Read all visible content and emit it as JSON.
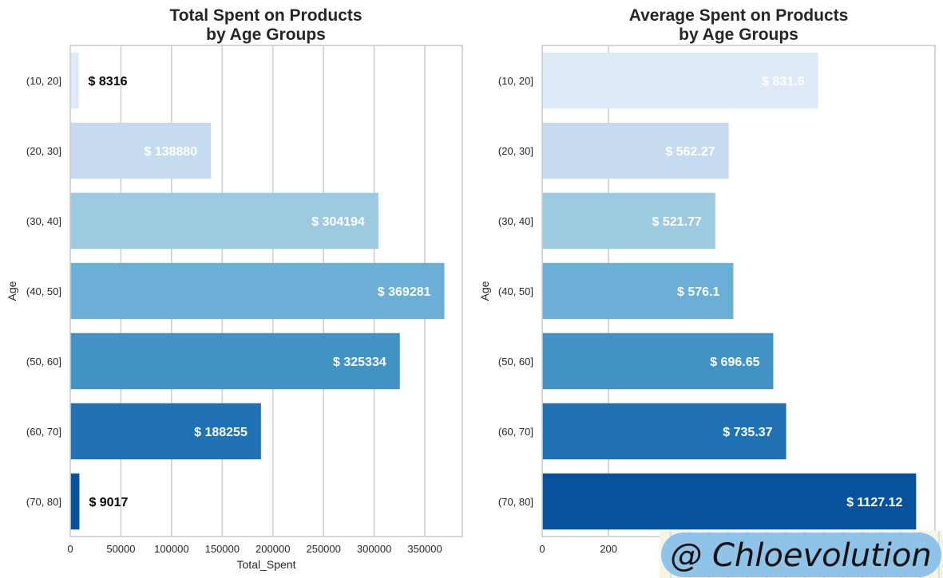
{
  "chart_data": [
    {
      "type": "bar",
      "orientation": "horizontal",
      "title": [
        "Total Spent on Products",
        "by Age Groups"
      ],
      "xlabel": "Total_Spent",
      "ylabel": "Age",
      "categories": [
        "(10, 20]",
        "(20, 30]",
        "(30, 40]",
        "(40, 50]",
        "(50, 60]",
        "(60, 70]",
        "(70, 80]"
      ],
      "values": [
        8316,
        138880,
        304194,
        369281,
        325334,
        188255,
        9017
      ],
      "data_labels": [
        "$ 8316",
        "$ 138880",
        "$ 304194",
        "$ 369281",
        "$ 325334",
        "$ 188255",
        "$ 9017"
      ],
      "xlim": [
        0,
        387000
      ],
      "xticks": [
        0,
        50000,
        100000,
        150000,
        200000,
        250000,
        300000,
        350000
      ],
      "xtick_labels": [
        "0",
        "50000",
        "100000",
        "150000",
        "200000",
        "250000",
        "300000",
        "350000"
      ],
      "grid": true,
      "colors": [
        "#deebf7",
        "#c6dbef",
        "#9ecae1",
        "#6baed6",
        "#4292c6",
        "#2171b5",
        "#08519c"
      ]
    },
    {
      "type": "bar",
      "orientation": "horizontal",
      "title": [
        "Average Spent on Products",
        "by Age Groups"
      ],
      "xlabel": "",
      "ylabel": "Age",
      "categories": [
        "(10, 20]",
        "(20, 30]",
        "(30, 40]",
        "(40, 50]",
        "(50, 60]",
        "(60, 70]",
        "(70, 80]"
      ],
      "values": [
        831.6,
        562.27,
        521.77,
        576.1,
        696.65,
        735.37,
        1127.12
      ],
      "data_labels": [
        "$ 831.6",
        "$ 562.27",
        "$ 521.77",
        "$ 576.1",
        "$ 696.65",
        "$ 735.37",
        "$ 1127.12"
      ],
      "xlim": [
        0,
        1184
      ],
      "xticks": [
        0,
        200
      ],
      "xtick_labels": [
        "0",
        "200"
      ],
      "grid": true,
      "colors": [
        "#deebf7",
        "#c6dbef",
        "#9ecae1",
        "#6baed6",
        "#4292c6",
        "#2171b5",
        "#08519c"
      ]
    }
  ],
  "watermark": {
    "text": "@ Chloevolution",
    "color": "#8fc3e8"
  }
}
